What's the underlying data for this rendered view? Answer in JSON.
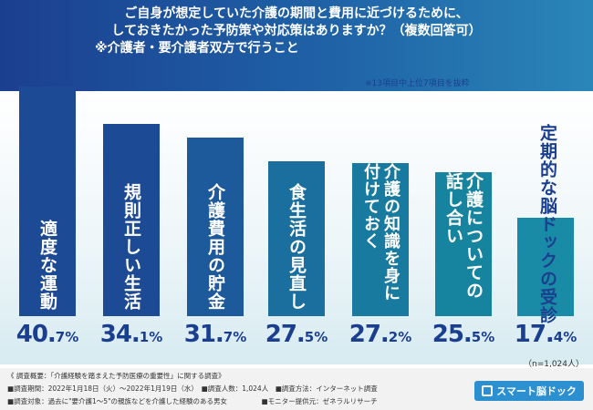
{
  "title": {
    "line1": "ご自身が想定していた介護の期間と費用に近づけるために、",
    "line2": "しておきたかった予防策や対応策はありますか？（複数回答可）",
    "line3": "※介護者・要介護者双方で行うこと"
  },
  "note": "※13項目中上位7項目を抜粋",
  "chart_data": {
    "type": "bar",
    "categories": [
      "適度な運動",
      "規則正しい生活",
      "介護費用の貯金",
      "食生活の見直し",
      "介護の知識を身に付けておく",
      "介護についての話し合い",
      "定期的な脳ドックの受診"
    ],
    "values": [
      40.7,
      34.1,
      31.7,
      27.5,
      27.2,
      25.5,
      17.4
    ],
    "value_labels": [
      {
        "int": "40.",
        "dec": "7%"
      },
      {
        "int": "34.",
        "dec": "1%"
      },
      {
        "int": "31.",
        "dec": "7%"
      },
      {
        "int": "27.",
        "dec": "5%"
      },
      {
        "int": "27.",
        "dec": "2%"
      },
      {
        "int": "25.",
        "dec": "5%"
      },
      {
        "int": "17.",
        "dec": "4%"
      }
    ],
    "ylim": [
      0,
      40.7
    ],
    "colors": [
      "#1d4a94",
      "#1d4a94",
      "#1d5a9c",
      "#1a6f9f",
      "#187a9e",
      "#16849f",
      "#1a8ba6"
    ]
  },
  "sample_size": "（n=1,024人）",
  "footer": {
    "line1": "《 調査概要：「介護経験を踏まえた予防医療の重要性」に関する調査》",
    "line2": "■調査期間：2022年1月18日（火）〜2022年1月19日（水）　■調査人数：1,024人　■調査方法：インターネット調査",
    "line3": "■調査対象：過去に\"要介護1〜5\"の親族などを介護した経験のある男女　　　　　■モニター提供元：ゼネラルリサーチ"
  },
  "logo": {
    "text": "スマート脳ドック",
    "icon": "brain-dock-icon"
  }
}
